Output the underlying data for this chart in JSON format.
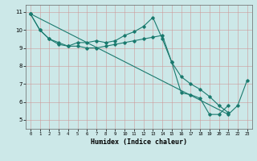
{
  "xlabel": "Humidex (Indice chaleur)",
  "ylabel": "",
  "background_color": "#cce8e8",
  "grid_color": "#aacccc",
  "line_color": "#1a7a6e",
  "xlim": [
    -0.5,
    23.5
  ],
  "ylim": [
    4.5,
    11.4
  ],
  "xticks": [
    0,
    1,
    2,
    3,
    4,
    5,
    6,
    7,
    8,
    9,
    10,
    11,
    12,
    13,
    14,
    15,
    16,
    17,
    18,
    19,
    20,
    21,
    22,
    23
  ],
  "yticks": [
    5,
    6,
    7,
    8,
    9,
    10,
    11
  ],
  "line1_x": [
    0,
    1,
    2,
    3,
    4,
    5,
    6,
    7,
    8,
    9,
    10,
    11,
    12,
    13,
    14,
    15,
    16,
    17,
    18,
    19,
    20,
    21
  ],
  "line1_y": [
    10.9,
    10.0,
    9.5,
    9.3,
    9.1,
    9.3,
    9.3,
    9.4,
    9.3,
    9.4,
    9.7,
    9.9,
    10.2,
    10.7,
    9.5,
    8.2,
    6.5,
    6.4,
    6.2,
    5.3,
    5.3,
    5.8
  ],
  "line2_x": [
    0,
    1,
    2,
    3,
    4,
    5,
    6,
    7,
    8,
    9,
    10,
    11,
    12,
    13,
    14,
    15,
    16,
    17,
    18,
    19,
    20,
    21
  ],
  "line2_y": [
    10.9,
    10.0,
    9.5,
    9.2,
    9.1,
    9.1,
    9.0,
    9.0,
    9.1,
    9.2,
    9.3,
    9.4,
    9.5,
    9.6,
    9.7,
    8.2,
    7.4,
    7.0,
    6.7,
    6.3,
    5.8,
    5.4
  ],
  "line3_x": [
    0,
    21,
    22,
    23
  ],
  "line3_y": [
    10.9,
    5.3,
    5.8,
    7.2
  ]
}
